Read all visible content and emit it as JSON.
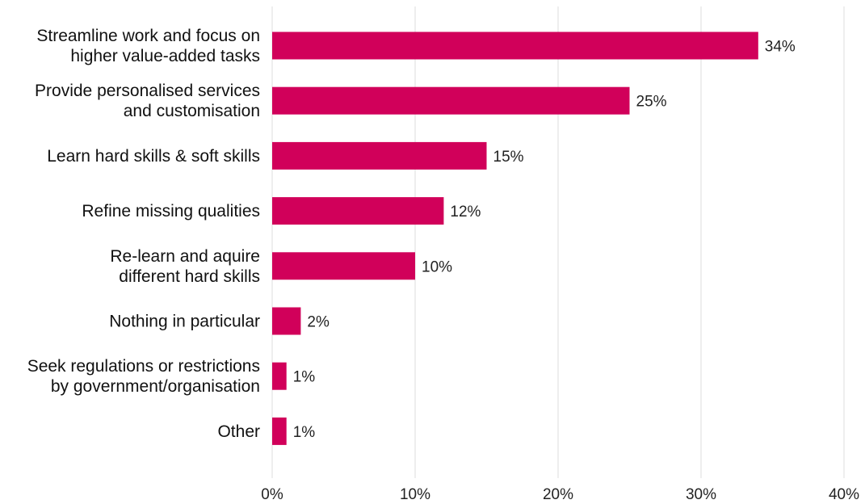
{
  "chart_data": {
    "type": "bar",
    "orientation": "horizontal",
    "categories": [
      "Streamline work and focus on\nhigher value-added tasks",
      "Provide personalised services\nand customisation",
      "Learn hard skills & soft skills",
      "Refine missing qualities",
      "Re-learn and aquire\ndifferent hard skills",
      "Nothing in particular",
      "Seek regulations or restrictions\nby government/organisation",
      "Other"
    ],
    "values": [
      34,
      25,
      15,
      12,
      10,
      2,
      1,
      1
    ],
    "value_labels": [
      "34%",
      "25%",
      "15%",
      "12%",
      "10%",
      "2%",
      "1%",
      "1%"
    ],
    "xlim": [
      0,
      40
    ],
    "xticks": [
      0,
      10,
      20,
      30,
      40
    ],
    "xtick_labels": [
      "0%",
      "10%",
      "20%",
      "30%",
      "40%"
    ],
    "grid": true,
    "bar_color": "#d1005a"
  }
}
